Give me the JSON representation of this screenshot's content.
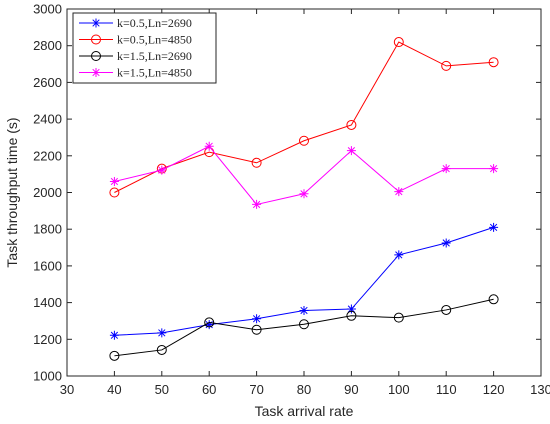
{
  "chart_data": {
    "type": "line",
    "xlabel": "Task arrival rate",
    "ylabel": "Task throughput time (s)",
    "xlim": [
      30,
      130
    ],
    "ylim": [
      1000,
      3000
    ],
    "xticks": [
      30,
      40,
      50,
      60,
      70,
      80,
      90,
      100,
      110,
      120,
      130
    ],
    "yticks": [
      1000,
      1200,
      1400,
      1600,
      1800,
      2000,
      2200,
      2400,
      2600,
      2800,
      3000
    ],
    "grid": false,
    "legend_position": "top-left",
    "x": [
      40,
      50,
      60,
      70,
      80,
      90,
      100,
      110,
      120
    ],
    "series": [
      {
        "name": "k=0.5,Ln=2690",
        "color": "#0000ff",
        "marker": "star",
        "values": [
          1222,
          1235,
          1280,
          1312,
          1357,
          1365,
          1660,
          1725,
          1810
        ]
      },
      {
        "name": "k=0.5,Ln=4850",
        "color": "#ff0000",
        "marker": "circle",
        "values": [
          2000,
          2130,
          2220,
          2162,
          2282,
          2368,
          2820,
          2690,
          2710
        ]
      },
      {
        "name": "k=1.5,Ln=2690",
        "color": "#000000",
        "marker": "circle",
        "values": [
          1110,
          1142,
          1292,
          1252,
          1282,
          1328,
          1318,
          1360,
          1418
        ]
      },
      {
        "name": "k=1.5,Ln=4850",
        "color": "#ff00ff",
        "marker": "star",
        "values": [
          2060,
          2122,
          2252,
          1935,
          1993,
          2228,
          2005,
          2130,
          2130
        ]
      }
    ]
  }
}
